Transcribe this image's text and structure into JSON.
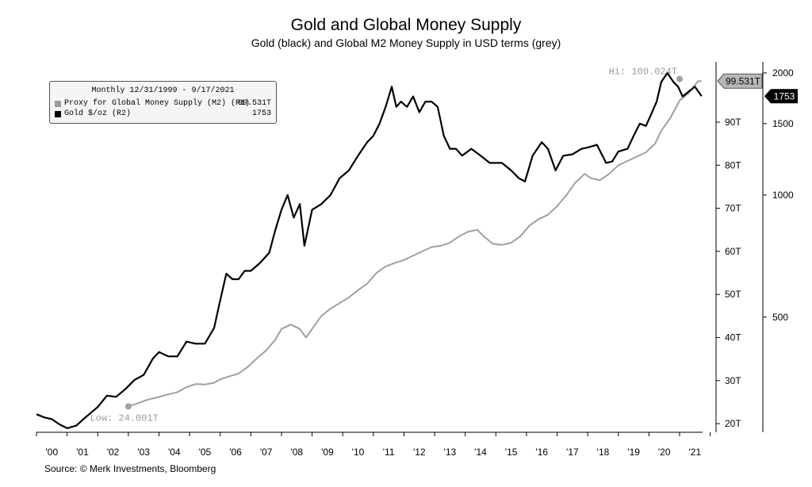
{
  "title": "Gold and Global Money Supply",
  "subtitle": "Gold (black) and Global M2 Money Supply in USD terms (grey)",
  "source": "Source: © Merk Investments, Bloomberg",
  "legend": {
    "title": "Monthly 12/31/1999 - 9/17/2021",
    "items": [
      {
        "label": "Proxy for Global Money Supply (M2) (R1)",
        "value": "99.531T",
        "color": "#9a9a9a"
      },
      {
        "label": "Gold $/oz (R2)",
        "value": "1753",
        "color": "#000000"
      }
    ]
  },
  "chart_data": {
    "type": "line",
    "title": "Gold and Global Money Supply",
    "subtitle": "Gold (black) and Global M2 Money Supply in USD terms (grey)",
    "x_tick_labels": [
      "'00",
      "'01",
      "'02",
      "'03",
      "'04",
      "'05",
      "'06",
      "'07",
      "'08",
      "'09",
      "'10",
      "'11",
      "'12",
      "'13",
      "'14",
      "'15",
      "'16",
      "'17",
      "'18",
      "'19",
      "'20",
      "'21"
    ],
    "x_range": [
      2000.0,
      2021.75
    ],
    "axes": {
      "r1": {
        "label_suffix": "T",
        "range": [
          18,
          104
        ],
        "ticks": [
          "20T",
          "30T",
          "40T",
          "50T",
          "60T",
          "70T",
          "80T",
          "90T"
        ]
      },
      "r2": {
        "scale": "log",
        "range": [
          260,
          2130
        ],
        "ticks": [
          "500",
          "1000",
          "1500",
          "2000"
        ]
      }
    },
    "annotations": {
      "m2_high": {
        "text": "Hi: 100.024T",
        "x": 2021.0,
        "y": 100.024
      },
      "m2_low": {
        "text": "Low: 24.001T",
        "x": 2003.0,
        "y": 24.001
      },
      "m2_last_tag": "99.531T",
      "gold_last_tag": "1753"
    },
    "series": [
      {
        "name": "Proxy for Global Money Supply (M2)",
        "axis": "r1",
        "color": "#a0a0a0",
        "x": [
          2003.0,
          2003.3,
          2003.6,
          2004.0,
          2004.3,
          2004.6,
          2004.9,
          2005.2,
          2005.5,
          2005.8,
          2006.0,
          2006.3,
          2006.6,
          2006.9,
          2007.2,
          2007.5,
          2007.8,
          2008.0,
          2008.3,
          2008.6,
          2008.8,
          2009.0,
          2009.3,
          2009.6,
          2009.9,
          2010.2,
          2010.5,
          2010.8,
          2011.1,
          2011.4,
          2011.7,
          2012.0,
          2012.3,
          2012.6,
          2012.9,
          2013.2,
          2013.5,
          2013.8,
          2014.1,
          2014.4,
          2014.6,
          2014.9,
          2015.2,
          2015.5,
          2015.8,
          2016.1,
          2016.4,
          2016.7,
          2017.0,
          2017.3,
          2017.6,
          2017.9,
          2018.1,
          2018.4,
          2018.7,
          2019.0,
          2019.3,
          2019.6,
          2019.9,
          2020.2,
          2020.4,
          2020.7,
          2021.0,
          2021.3,
          2021.6,
          2021.72
        ],
        "y": [
          24.0,
          24.7,
          25.5,
          26.2,
          26.8,
          27.3,
          28.5,
          29.2,
          29.1,
          29.5,
          30.3,
          31.0,
          31.6,
          33.2,
          35.2,
          37.0,
          39.5,
          42.0,
          43.0,
          42.0,
          40.0,
          42.0,
          45.0,
          46.7,
          48.0,
          49.3,
          51.0,
          52.5,
          55.0,
          56.5,
          57.3,
          58.0,
          59.0,
          60.0,
          61.0,
          61.3,
          62.0,
          63.5,
          64.6,
          65.0,
          63.5,
          61.8,
          61.5,
          62.0,
          63.5,
          66.0,
          67.5,
          68.5,
          70.5,
          73.0,
          76.0,
          78.0,
          77.0,
          76.5,
          78.0,
          80.0,
          81.0,
          82.0,
          83.0,
          85.0,
          88.0,
          91.0,
          95.0,
          96.8,
          99.5,
          99.531
        ]
      },
      {
        "name": "Gold $/oz",
        "axis": "r2",
        "color": "#000000",
        "x": [
          2000.0,
          2000.25,
          2000.5,
          2000.75,
          2001.0,
          2001.3,
          2001.6,
          2002.0,
          2002.3,
          2002.6,
          2002.9,
          2003.2,
          2003.5,
          2003.8,
          2004.0,
          2004.3,
          2004.6,
          2004.9,
          2005.2,
          2005.5,
          2005.8,
          2006.0,
          2006.2,
          2006.4,
          2006.6,
          2006.8,
          2007.0,
          2007.3,
          2007.6,
          2007.8,
          2008.0,
          2008.2,
          2008.4,
          2008.6,
          2008.75,
          2009.0,
          2009.3,
          2009.6,
          2009.9,
          2010.2,
          2010.5,
          2010.8,
          2011.0,
          2011.2,
          2011.4,
          2011.6,
          2011.75,
          2011.9,
          2012.1,
          2012.3,
          2012.5,
          2012.7,
          2012.9,
          2013.1,
          2013.3,
          2013.5,
          2013.7,
          2013.9,
          2014.2,
          2014.5,
          2014.8,
          2014.95,
          2015.2,
          2015.5,
          2015.75,
          2015.95,
          2016.2,
          2016.5,
          2016.7,
          2016.95,
          2017.2,
          2017.5,
          2017.8,
          2018.0,
          2018.3,
          2018.6,
          2018.8,
          2019.0,
          2019.3,
          2019.5,
          2019.7,
          2019.9,
          2020.1,
          2020.25,
          2020.4,
          2020.6,
          2020.8,
          2020.95,
          2021.1,
          2021.3,
          2021.5,
          2021.72
        ],
        "y": [
          288,
          283,
          280,
          272,
          266,
          270,
          283,
          300,
          320,
          318,
          332,
          350,
          360,
          395,
          410,
          400,
          400,
          435,
          430,
          430,
          470,
          550,
          640,
          620,
          620,
          650,
          650,
          680,
          720,
          820,
          920,
          1000,
          880,
          950,
          750,
          920,
          950,
          1000,
          1100,
          1150,
          1250,
          1350,
          1400,
          1500,
          1650,
          1850,
          1650,
          1700,
          1650,
          1750,
          1600,
          1700,
          1700,
          1650,
          1400,
          1300,
          1300,
          1250,
          1300,
          1250,
          1200,
          1200,
          1200,
          1150,
          1100,
          1080,
          1250,
          1350,
          1300,
          1150,
          1250,
          1260,
          1300,
          1310,
          1330,
          1200,
          1210,
          1280,
          1300,
          1400,
          1500,
          1480,
          1600,
          1700,
          1900,
          2000,
          1900,
          1850,
          1750,
          1800,
          1850,
          1753
        ]
      }
    ]
  }
}
